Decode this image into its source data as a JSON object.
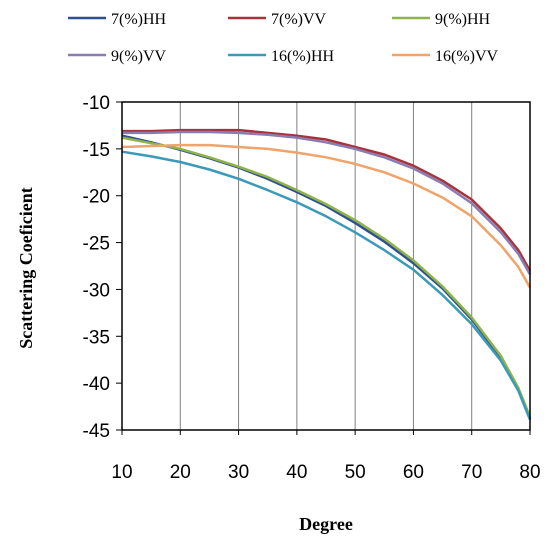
{
  "chart_data": {
    "type": "line",
    "xlabel": "Degree",
    "ylabel": "Scattering Coeficient",
    "xlim": [
      10,
      80
    ],
    "ylim": [
      -45,
      -10
    ],
    "xticks": [
      10,
      20,
      30,
      40,
      50,
      60,
      70,
      80
    ],
    "yticks": [
      -10,
      -15,
      -20,
      -25,
      -30,
      -35,
      -40,
      -45
    ],
    "grid": "vertical",
    "legend_position": "top",
    "x": [
      10,
      15,
      20,
      25,
      30,
      35,
      40,
      45,
      50,
      55,
      60,
      65,
      70,
      75,
      78,
      80
    ],
    "series": [
      {
        "name": "7(%)HH",
        "color": "#2f4f8f",
        "values": [
          -13.6,
          -14.3,
          -15.1,
          -16.0,
          -17.0,
          -18.2,
          -19.6,
          -21.1,
          -22.9,
          -24.9,
          -27.2,
          -29.9,
          -33.2,
          -37.3,
          -40.7,
          -43.8
        ]
      },
      {
        "name": "7(%)VV",
        "color": "#a8323c",
        "values": [
          -13.1,
          -13.1,
          -13.0,
          -13.0,
          -13.0,
          -13.3,
          -13.6,
          -14.0,
          -14.8,
          -15.6,
          -16.8,
          -18.4,
          -20.4,
          -23.5,
          -25.8,
          -28.0
        ]
      },
      {
        "name": "9(%)HH",
        "color": "#8db34a",
        "values": [
          -13.8,
          -14.4,
          -15.0,
          -15.9,
          -16.9,
          -18.0,
          -19.4,
          -20.9,
          -22.6,
          -24.6,
          -26.9,
          -29.7,
          -33.0,
          -37.1,
          -40.5,
          -43.6
        ]
      },
      {
        "name": "9(%)VV",
        "color": "#8a7cae",
        "values": [
          -13.3,
          -13.3,
          -13.2,
          -13.2,
          -13.3,
          -13.5,
          -13.8,
          -14.3,
          -15.0,
          -15.9,
          -17.1,
          -18.7,
          -20.8,
          -23.9,
          -26.2,
          -28.4
        ]
      },
      {
        "name": "16(%)HH",
        "color": "#3a9ab8",
        "values": [
          -15.3,
          -15.8,
          -16.4,
          -17.2,
          -18.2,
          -19.4,
          -20.7,
          -22.2,
          -23.9,
          -25.8,
          -27.9,
          -30.6,
          -33.7,
          -37.6,
          -40.8,
          -43.9
        ]
      },
      {
        "name": "16(%)VV",
        "color": "#f0a36a",
        "values": [
          -14.8,
          -14.7,
          -14.6,
          -14.6,
          -14.8,
          -15.0,
          -15.4,
          -15.9,
          -16.6,
          -17.5,
          -18.7,
          -20.2,
          -22.2,
          -25.3,
          -27.6,
          -29.8
        ]
      }
    ]
  }
}
